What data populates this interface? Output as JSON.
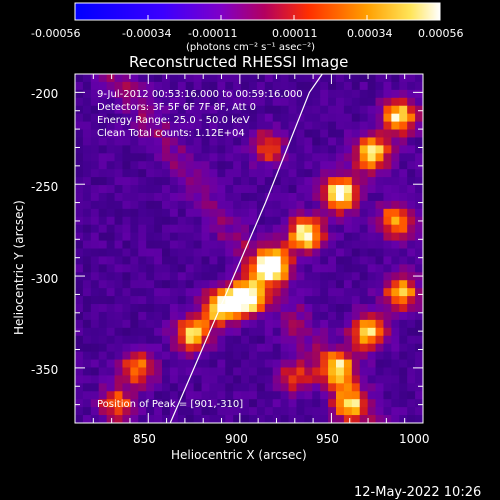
{
  "chart_data": {
    "type": "heatmap",
    "title": "Reconstructed RHESSI Image",
    "xlabel": "Heliocentric X (arcsec)",
    "ylabel": "Heliocentric Y (arcsec)",
    "xlim": [
      810,
      1000
    ],
    "ylim": [
      -380,
      -190
    ],
    "x_ticks": [
      "850",
      "900",
      "950",
      "1000"
    ],
    "y_ticks": [
      "-200",
      "-250",
      "-300",
      "-350"
    ],
    "colorbar": {
      "min": -0.00056,
      "max": 0.00056,
      "ticks": [
        "-0.00056",
        "-0.00034",
        "-0.00011",
        "0.00011",
        "0.00034",
        "0.00056"
      ],
      "units": "(photons cm⁻² s⁻¹ asec⁻²)"
    },
    "annotations": [
      "9-Jul-2012 00:53:16.000 to 00:59:16.000",
      "Detectors: 3F 5F 6F 7F 8F, Att 0",
      "Energy Range: 25.0 - 50.0 keV",
      "Clean     Total counts: 1.12E+04"
    ],
    "peak_label": "Position of Peak = [901,-310]",
    "timestamp": "12-May-2022 10:26",
    "limb_points": [
      [
        862,
        -380
      ],
      [
        875,
        -350
      ],
      [
        888,
        -320
      ],
      [
        901,
        -290
      ],
      [
        914,
        -260
      ],
      [
        926,
        -230
      ],
      [
        938,
        -200
      ],
      [
        945,
        -190
      ]
    ],
    "bright_regions": [
      {
        "x": 903,
        "y": -312,
        "intensity": 1.0
      },
      {
        "x": 918,
        "y": -294,
        "intensity": 0.95
      },
      {
        "x": 936,
        "y": -277,
        "intensity": 0.85
      },
      {
        "x": 955,
        "y": -255,
        "intensity": 0.88
      },
      {
        "x": 972,
        "y": -233,
        "intensity": 0.8
      },
      {
        "x": 987,
        "y": -213,
        "intensity": 0.75
      },
      {
        "x": 874,
        "y": -332,
        "intensity": 0.7
      },
      {
        "x": 889,
        "y": -317,
        "intensity": 0.78
      },
      {
        "x": 844,
        "y": -350,
        "intensity": 0.55
      },
      {
        "x": 833,
        "y": -370,
        "intensity": 0.5
      },
      {
        "x": 954,
        "y": -350,
        "intensity": 0.65
      },
      {
        "x": 970,
        "y": -330,
        "intensity": 0.7
      },
      {
        "x": 988,
        "y": -309,
        "intensity": 0.66
      },
      {
        "x": 985,
        "y": -270,
        "intensity": 0.6
      },
      {
        "x": 960,
        "y": -370,
        "intensity": 0.55
      },
      {
        "x": 930,
        "y": -355,
        "intensity": 0.42
      },
      {
        "x": 915,
        "y": -230,
        "intensity": 0.45
      }
    ]
  }
}
